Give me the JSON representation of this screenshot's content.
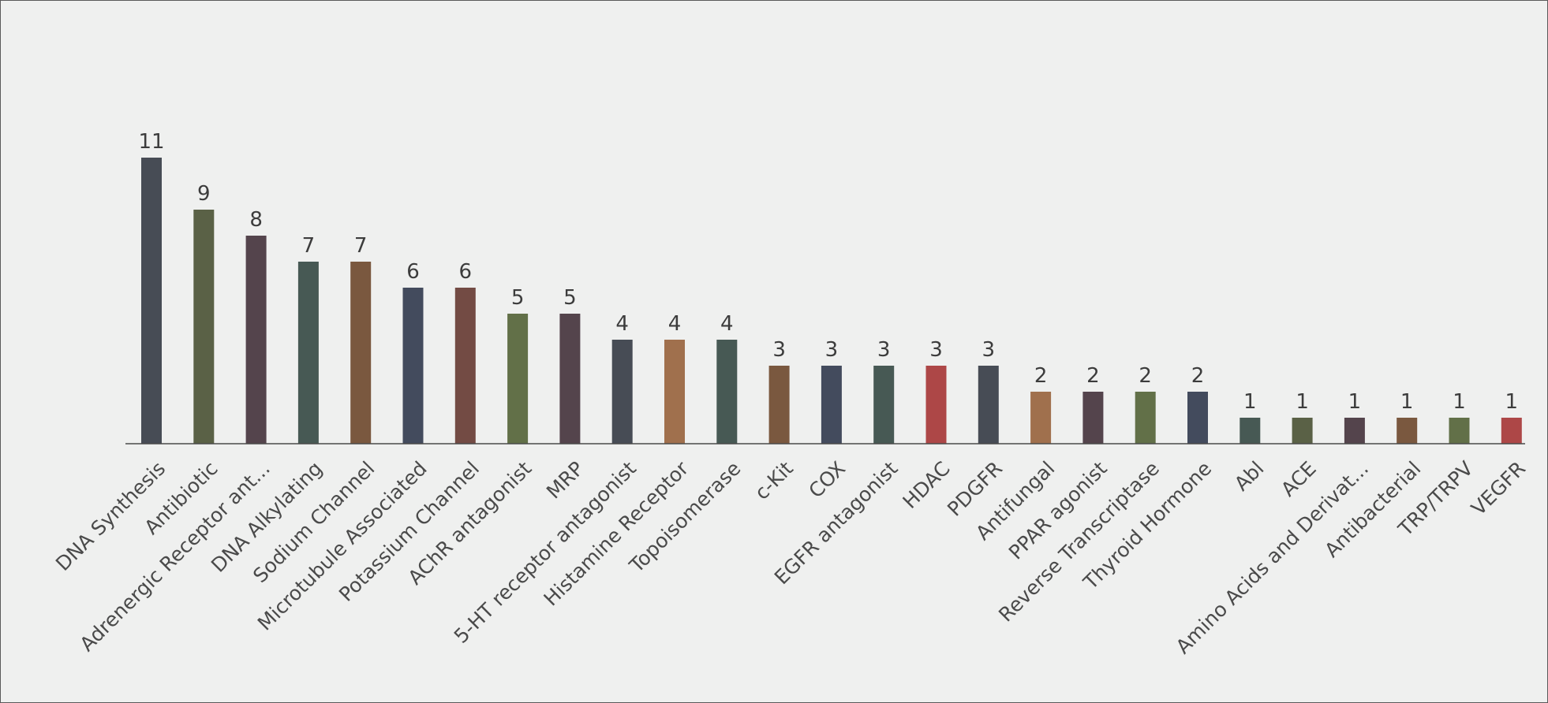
{
  "chart_data": {
    "type": "bar",
    "title": "",
    "xlabel": "",
    "ylabel": "",
    "ylim": [
      0,
      11
    ],
    "grid": false,
    "legend": "none",
    "categories": [
      "DNA Synthesis",
      "Antibiotic",
      "Adrenergic Receptor ant...",
      "DNA Alkylating",
      "Sodium Channel",
      "Microtubule Associated",
      "Potassium Channel",
      "AChR antagonist",
      "MRP",
      "5-HT receptor antagonist",
      "Histamine Receptor",
      "Topoisomerase",
      "c-Kit",
      "COX",
      "EGFR antagonist",
      "HDAC",
      "PDGFR",
      "Antifungal",
      "PPAR agonist",
      "Reverse Transcriptase",
      "Thyroid Hormone",
      "Abl",
      "ACE",
      "Amino Acids and Derivat...",
      "Antibacterial",
      "TRP/TRPV",
      "VEGFR"
    ],
    "values": [
      11,
      9,
      8,
      7,
      7,
      6,
      6,
      5,
      5,
      4,
      4,
      4,
      3,
      3,
      3,
      3,
      3,
      2,
      2,
      2,
      2,
      1,
      1,
      1,
      1,
      1,
      1
    ],
    "data_labels": [
      "11",
      "9",
      "8",
      "7",
      "7",
      "6",
      "6",
      "5",
      "5",
      "4",
      "4",
      "4",
      "3",
      "3",
      "3",
      "3",
      "3",
      "2",
      "2",
      "2",
      "2",
      "1",
      "1",
      "1",
      "1",
      "1",
      "1"
    ],
    "colors": [
      "#474c55",
      "#5a6146",
      "#54444c",
      "#475954",
      "#7a583f",
      "#434b5d",
      "#734b44",
      "#627048",
      "#54444c",
      "#474c55",
      "#a0704d",
      "#475954",
      "#7a583f",
      "#434b5d",
      "#475954",
      "#ad4747",
      "#474c55",
      "#a0704d",
      "#54444c",
      "#627048",
      "#434b5d",
      "#475954",
      "#5a6146",
      "#54444c",
      "#7a583f",
      "#627048",
      "#ad4747"
    ],
    "axis_color": "#4a4a4a"
  }
}
